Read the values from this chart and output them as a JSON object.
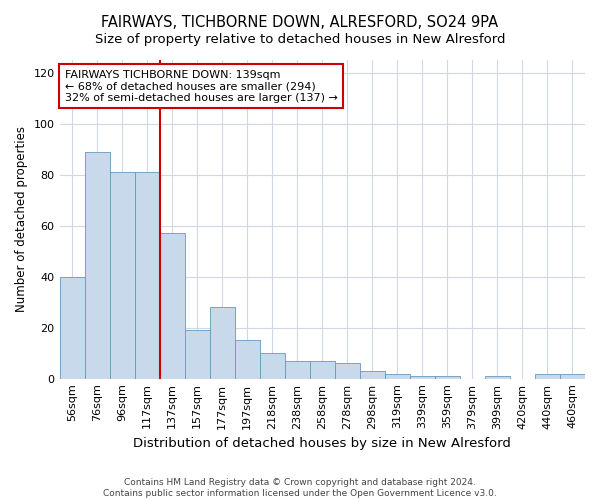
{
  "title": "FAIRWAYS, TICHBORNE DOWN, ALRESFORD, SO24 9PA",
  "subtitle": "Size of property relative to detached houses in New Alresford",
  "xlabel": "Distribution of detached houses by size in New Alresford",
  "ylabel": "Number of detached properties",
  "categories": [
    "56sqm",
    "76sqm",
    "96sqm",
    "117sqm",
    "137sqm",
    "157sqm",
    "177sqm",
    "197sqm",
    "218sqm",
    "238sqm",
    "258sqm",
    "278sqm",
    "298sqm",
    "319sqm",
    "339sqm",
    "359sqm",
    "379sqm",
    "399sqm",
    "420sqm",
    "440sqm",
    "460sqm"
  ],
  "values": [
    40,
    89,
    81,
    81,
    57,
    19,
    28,
    15,
    10,
    7,
    7,
    6,
    3,
    2,
    1,
    1,
    0,
    1,
    0,
    2,
    2
  ],
  "bar_color": "#c8d9ec",
  "bar_edge_color": "#6699bb",
  "vline_index": 4,
  "vline_color": "#cc0000",
  "annotation_text": "FAIRWAYS TICHBORNE DOWN: 139sqm\n← 68% of detached houses are smaller (294)\n32% of semi-detached houses are larger (137) →",
  "annotation_box_color": "#ffffff",
  "annotation_box_edge": "#cc0000",
  "ylim": [
    0,
    125
  ],
  "yticks": [
    0,
    20,
    40,
    60,
    80,
    100,
    120
  ],
  "footnote": "Contains HM Land Registry data © Crown copyright and database right 2024.\nContains public sector information licensed under the Open Government Licence v3.0.",
  "background_color": "#ffffff",
  "grid_color": "#d0d8e8",
  "title_fontsize": 10.5,
  "subtitle_fontsize": 9.5,
  "xlabel_fontsize": 9.5,
  "ylabel_fontsize": 8.5,
  "tick_fontsize": 8,
  "footnote_fontsize": 6.5,
  "annotation_fontsize": 8
}
